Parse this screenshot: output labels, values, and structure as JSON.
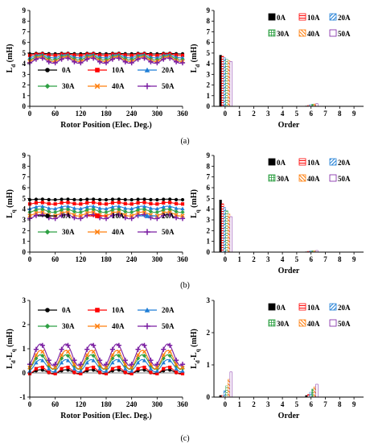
{
  "styles": {
    "colors": [
      "#000000",
      "#ff0000",
      "#1f7ed6",
      "#2ea043",
      "#ff7f0e",
      "#7b1fa2"
    ],
    "markers": [
      "circle",
      "square",
      "triangle",
      "diamond",
      "x",
      "plus"
    ],
    "bar_patterns": [
      "solid",
      "hatch-h",
      "hatch-d",
      "grid",
      "hatch-d2",
      "hollow"
    ]
  },
  "captions": [
    "(a)",
    "(b)",
    "(c)"
  ],
  "chart_data": [
    {
      "id": "a-left",
      "type": "line",
      "ylabel": "Ld (mH)",
      "ylabel_main": "L",
      "ylabel_sub": "d",
      "ylabel_unit": " (mH)",
      "xlabel": "Rotor Position (Elec. Deg.)",
      "xlim": [
        0,
        360
      ],
      "ylim": [
        0,
        9
      ],
      "xticks": [
        0,
        60,
        120,
        180,
        240,
        300,
        360
      ],
      "yticks": [
        0,
        1,
        2,
        3,
        4,
        5,
        6,
        7,
        8,
        9
      ],
      "legend": "inside-bottom",
      "series": [
        {
          "name": "0A",
          "base": 4.95,
          "amp": 0.03
        },
        {
          "name": "10A",
          "base": 4.85,
          "amp": 0.08
        },
        {
          "name": "20A",
          "base": 4.7,
          "amp": 0.15
        },
        {
          "name": "30A",
          "base": 4.55,
          "amp": 0.2
        },
        {
          "name": "40A",
          "base": 4.42,
          "amp": 0.22
        },
        {
          "name": "50A",
          "base": 4.3,
          "amp": 0.25
        }
      ]
    },
    {
      "id": "a-right",
      "type": "bar",
      "ylabel": "Ld (mH)",
      "ylabel_main": "L",
      "ylabel_sub": "d",
      "ylabel_unit": " (mH)",
      "xlabel": "Order",
      "categories": [
        "0",
        "1",
        "2",
        "3",
        "4",
        "5",
        "6",
        "7",
        "8",
        "9"
      ],
      "ylim": [
        0,
        9
      ],
      "yticks": [
        0,
        1,
        2,
        3,
        4,
        5,
        6,
        7,
        8,
        9
      ],
      "legend": "top-right",
      "series": [
        {
          "name": "0A",
          "values": [
            4.8,
            0,
            0,
            0,
            0,
            0,
            0.03,
            0,
            0,
            0
          ]
        },
        {
          "name": "10A",
          "values": [
            4.7,
            0,
            0,
            0,
            0,
            0,
            0.08,
            0,
            0,
            0
          ]
        },
        {
          "name": "20A",
          "values": [
            4.55,
            0,
            0,
            0,
            0,
            0,
            0.15,
            0,
            0,
            0
          ]
        },
        {
          "name": "30A",
          "values": [
            4.4,
            0,
            0,
            0,
            0,
            0,
            0.2,
            0,
            0,
            0
          ]
        },
        {
          "name": "40A",
          "values": [
            4.3,
            0,
            0,
            0,
            0,
            0,
            0.22,
            0,
            0,
            0
          ]
        },
        {
          "name": "50A",
          "values": [
            4.2,
            0,
            0,
            0,
            0,
            0,
            0.25,
            0,
            0,
            0
          ]
        }
      ]
    },
    {
      "id": "b-left",
      "type": "line",
      "ylabel": "Lq (mH)",
      "ylabel_main": "L",
      "ylabel_sub": "q",
      "ylabel_unit": " (mH)",
      "xlabel": "",
      "xlim": [
        0,
        360
      ],
      "ylim": [
        0,
        9
      ],
      "xticks": [
        0,
        60,
        120,
        180,
        240,
        300,
        360
      ],
      "yticks": [
        0,
        1,
        2,
        3,
        4,
        5,
        6,
        7,
        8,
        9
      ],
      "legend": "inside-bottom",
      "series": [
        {
          "name": "0A",
          "base": 4.9,
          "amp": 0.03
        },
        {
          "name": "10A",
          "base": 4.55,
          "amp": 0.08
        },
        {
          "name": "20A",
          "base": 4.15,
          "amp": 0.12
        },
        {
          "name": "30A",
          "base": 3.85,
          "amp": 0.15
        },
        {
          "name": "40A",
          "base": 3.55,
          "amp": 0.18
        },
        {
          "name": "50A",
          "base": 3.3,
          "amp": 0.2
        }
      ]
    },
    {
      "id": "b-right",
      "type": "bar",
      "ylabel": "Lq (mH)",
      "ylabel_main": "L",
      "ylabel_sub": "q",
      "ylabel_unit": " (mH)",
      "xlabel": "Order",
      "categories": [
        "0",
        "1",
        "2",
        "3",
        "4",
        "5",
        "6",
        "7",
        "8",
        "9"
      ],
      "ylim": [
        0,
        9
      ],
      "yticks": [
        0,
        1,
        2,
        3,
        4,
        5,
        6,
        7,
        8,
        9
      ],
      "legend": "top-right",
      "series": [
        {
          "name": "0A",
          "values": [
            4.85,
            0,
            0,
            0,
            0,
            0,
            0.03,
            0,
            0,
            0
          ]
        },
        {
          "name": "10A",
          "values": [
            4.5,
            0,
            0,
            0,
            0,
            0,
            0.07,
            0,
            0,
            0
          ]
        },
        {
          "name": "20A",
          "values": [
            4.15,
            0,
            0,
            0,
            0,
            0,
            0.1,
            0,
            0,
            0
          ]
        },
        {
          "name": "30A",
          "values": [
            3.85,
            0,
            0,
            0,
            0,
            0,
            0.12,
            0,
            0,
            0
          ]
        },
        {
          "name": "40A",
          "values": [
            3.55,
            0,
            0,
            0,
            0,
            0,
            0.14,
            0,
            0,
            0
          ]
        },
        {
          "name": "50A",
          "values": [
            3.3,
            0,
            0,
            0,
            0,
            0,
            0.15,
            0,
            0,
            0
          ]
        }
      ]
    },
    {
      "id": "c-left",
      "type": "line",
      "ylabel": "Ld-Lq (mH)",
      "ylabel_main": "L",
      "ylabel_sub": "d",
      "ylabel_mid": "-L",
      "ylabel_sub2": "q",
      "ylabel_unit": " (mH)",
      "xlabel": "Rotor Position (Elec. Deg.)",
      "xlim": [
        0,
        360
      ],
      "ylim": [
        -1,
        3
      ],
      "xticks": [
        0,
        60,
        120,
        180,
        240,
        300,
        360
      ],
      "yticks": [
        -1,
        0,
        1,
        2,
        3
      ],
      "legend": "inside-top",
      "series": [
        {
          "name": "0A",
          "base": 0.05,
          "amp": 0.08
        },
        {
          "name": "10A",
          "base": 0.1,
          "amp": 0.15
        },
        {
          "name": "20A",
          "base": 0.3,
          "amp": 0.25
        },
        {
          "name": "30A",
          "base": 0.45,
          "amp": 0.3
        },
        {
          "name": "40A",
          "base": 0.55,
          "amp": 0.38
        },
        {
          "name": "50A",
          "base": 0.75,
          "amp": 0.45
        }
      ]
    },
    {
      "id": "c-right",
      "type": "bar",
      "ylabel": "Ld-Lq (mH)",
      "ylabel_main": "L",
      "ylabel_sub": "d",
      "ylabel_mid": "-L",
      "ylabel_sub2": "q",
      "ylabel_unit": " (mH)",
      "xlabel": "Order",
      "categories": [
        "0",
        "1",
        "2",
        "3",
        "4",
        "5",
        "6",
        "7",
        "8",
        "9"
      ],
      "ylim": [
        0,
        3
      ],
      "yticks": [
        0,
        1,
        2,
        3
      ],
      "legend": "top-right",
      "series": [
        {
          "name": "0A",
          "values": [
            0.05,
            0,
            0,
            0,
            0,
            0,
            0.05,
            0,
            0,
            0
          ]
        },
        {
          "name": "10A",
          "values": [
            0.05,
            0,
            0,
            0,
            0,
            0,
            0.08,
            0,
            0,
            0
          ]
        },
        {
          "name": "20A",
          "values": [
            0.2,
            0,
            0,
            0,
            0,
            0,
            0.15,
            0,
            0,
            0
          ]
        },
        {
          "name": "30A",
          "values": [
            0.35,
            0,
            0,
            0,
            0,
            0,
            0.25,
            0,
            0,
            0
          ]
        },
        {
          "name": "40A",
          "values": [
            0.55,
            0,
            0,
            0,
            0,
            0,
            0.32,
            0,
            0,
            0
          ]
        },
        {
          "name": "50A",
          "values": [
            0.78,
            0,
            0,
            0,
            0,
            0,
            0.4,
            0,
            0,
            0
          ]
        }
      ]
    }
  ]
}
